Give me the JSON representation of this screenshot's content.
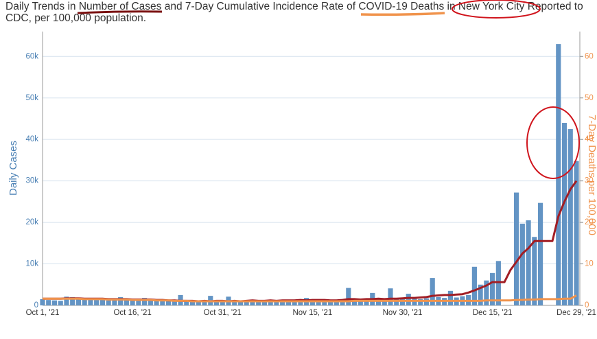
{
  "chart_data": {
    "type": "combo",
    "title": "Daily Trends in Number of Cases and 7-Day Cumulative Incidence Rate of COVID-19 Deaths in New York City Reported to CDC, per 100,000 population.",
    "y_label": "Daily Cases",
    "y2_label": "7-Day Deaths per 100,000",
    "categories": [
      "Oct 1, '21",
      null,
      null,
      null,
      null,
      null,
      null,
      null,
      null,
      null,
      null,
      null,
      null,
      null,
      null,
      "Oct 16, '21",
      null,
      null,
      null,
      null,
      null,
      null,
      null,
      null,
      null,
      null,
      null,
      null,
      null,
      null,
      "Oct 31, '21",
      null,
      null,
      null,
      null,
      null,
      null,
      null,
      null,
      null,
      null,
      null,
      null,
      null,
      null,
      "Nov 15, '21",
      null,
      null,
      null,
      null,
      null,
      null,
      null,
      null,
      null,
      null,
      null,
      null,
      null,
      null,
      "Nov 30, '21",
      null,
      null,
      null,
      null,
      null,
      null,
      null,
      null,
      null,
      null,
      null,
      null,
      null,
      null,
      "Dec 15, '21",
      null,
      null,
      null,
      null,
      null,
      null,
      null,
      null,
      null,
      null,
      null,
      null,
      null,
      "Dec 29, '21"
    ],
    "series": [
      {
        "type": "bar",
        "color": "#6394c4",
        "values": [
          1500,
          1300,
          1200,
          1100,
          2100,
          2000,
          1900,
          1800,
          1600,
          1300,
          1400,
          1200,
          1300,
          2000,
          1500,
          1200,
          1100,
          1800,
          1500,
          1400,
          1300,
          1100,
          1000,
          2500,
          1200,
          1000,
          900,
          1200,
          2300,
          900,
          800,
          2100,
          1000,
          900,
          1100,
          1200,
          900,
          1000,
          1300,
          1100,
          1000,
          1200,
          1100,
          1200,
          1800,
          1300,
          1100,
          1200,
          1000,
          1100,
          1400,
          4200,
          1500,
          1200,
          1300,
          3000,
          1400,
          1300,
          4100,
          1500,
          1600,
          2800,
          1800,
          1500,
          1700,
          6600,
          2000,
          1800,
          3500,
          1900,
          2200,
          2500,
          9300,
          5000,
          6000,
          7800,
          10700,
          0,
          0,
          27200,
          19700,
          20500,
          16500,
          24700,
          0,
          0,
          63000,
          44000,
          42500,
          34800
        ]
      },
      {
        "type": "line",
        "color": "#a11d24",
        "values": [
          1600,
          1600,
          1600,
          1600,
          1700,
          1700,
          1700,
          1600,
          1600,
          1600,
          1600,
          1500,
          1500,
          1500,
          1500,
          1400,
          1400,
          1400,
          1400,
          1300,
          1300,
          1200,
          1200,
          1100,
          1100,
          1100,
          1000,
          1100,
          1000,
          1100,
          1100,
          1000,
          1100,
          1000,
          1100,
          1200,
          1100,
          1100,
          1200,
          1100,
          1200,
          1200,
          1200,
          1300,
          1200,
          1300,
          1300,
          1300,
          1200,
          1200,
          1300,
          1500,
          1500,
          1400,
          1500,
          1500,
          1600,
          1500,
          1600,
          1600,
          1700,
          1800,
          1800,
          1900,
          2000,
          2300,
          2400,
          2500,
          2500,
          2600,
          2700,
          3100,
          3600,
          4200,
          4800,
          5600,
          5600,
          5600,
          8500,
          10500,
          12500,
          13800,
          15500,
          15500,
          15500,
          15500,
          21500,
          25000,
          28000,
          30000
        ]
      },
      {
        "type": "line",
        "axis": "y2",
        "color": "#f0934c",
        "values": [
          1.6,
          1.6,
          1.6,
          1.6,
          1.6,
          1.6,
          1.6,
          1.5,
          1.5,
          1.5,
          1.5,
          1.4,
          1.4,
          1.4,
          1.4,
          1.3,
          1.3,
          1.3,
          1.3,
          1.2,
          1.2,
          1.2,
          1.1,
          1.1,
          1.1,
          1.0,
          1.0,
          1.0,
          1.0,
          1.0,
          1.0,
          1.0,
          1.0,
          1.0,
          1.0,
          1.0,
          1.0,
          1.0,
          1.0,
          1.0,
          1.0,
          1.0,
          1.0,
          1.0,
          1.0,
          1.0,
          1.0,
          1.0,
          1.0,
          1.0,
          1.0,
          1.0,
          1.1,
          1.1,
          1.1,
          1.1,
          1.1,
          1.1,
          1.1,
          1.1,
          1.1,
          1.1,
          1.1,
          1.1,
          1.1,
          1.1,
          1.1,
          1.1,
          1.1,
          1.1,
          1.1,
          1.1,
          1.1,
          1.1,
          1.2,
          1.2,
          1.2,
          1.2,
          1.2,
          1.3,
          1.3,
          1.4,
          1.4,
          1.5,
          1.5,
          1.5,
          1.5,
          1.6,
          1.6,
          2.4
        ]
      }
    ],
    "ylim": [
      0,
      66000
    ],
    "yticks": [
      0,
      {
        "value": 10000,
        "label": "10k"
      },
      {
        "value": 20000,
        "label": "20k"
      },
      {
        "value": 30000,
        "label": "30k"
      },
      {
        "value": 40000,
        "label": "40k"
      },
      {
        "value": 50000,
        "label": "50k"
      },
      {
        "value": 60000,
        "label": "60k"
      }
    ],
    "y2lim": [
      0,
      66
    ],
    "y2ticks": [
      0,
      10,
      20,
      30,
      40,
      50,
      60
    ],
    "grid": true
  }
}
